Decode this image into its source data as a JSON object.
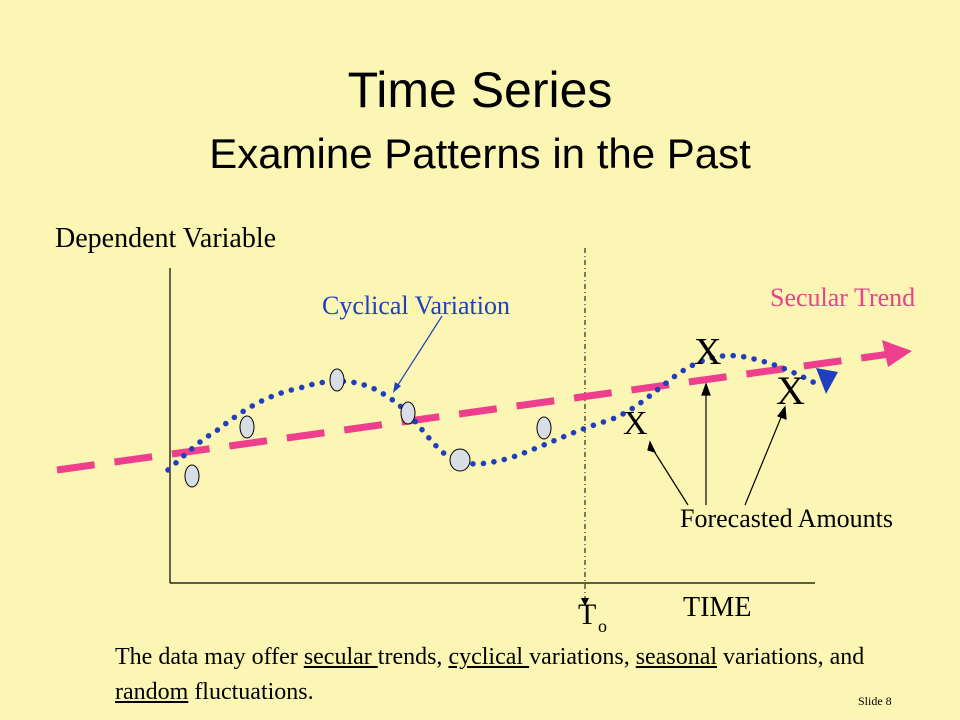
{
  "slide": {
    "title": "Time Series",
    "subtitle": "Examine Patterns in the Past",
    "slide_number": "Slide  8"
  },
  "diagram": {
    "y_axis_label": "Dependent Variable",
    "x_axis_label": "TIME",
    "t_label": "T",
    "t_subscript": "o",
    "cyclical_label": "Cyclical Variation",
    "secular_label": "Secular Trend",
    "forecast_label": "Forecasted Amounts",
    "forecast_marks": [
      "X",
      "X",
      "X"
    ],
    "colors": {
      "background": "#fbf6b3",
      "trend": "#ee3f8f",
      "cycle": "#1f3fbf",
      "points": "#d8dde6"
    }
  },
  "caption": {
    "part1": "The data may offer ",
    "u1": "secular ",
    "part2": "trends, ",
    "u2": "cyclical ",
    "part3": "variations, ",
    "u3": "seasonal",
    "part4": " variations, and ",
    "u4": "random",
    "part5": " fluctuations."
  }
}
